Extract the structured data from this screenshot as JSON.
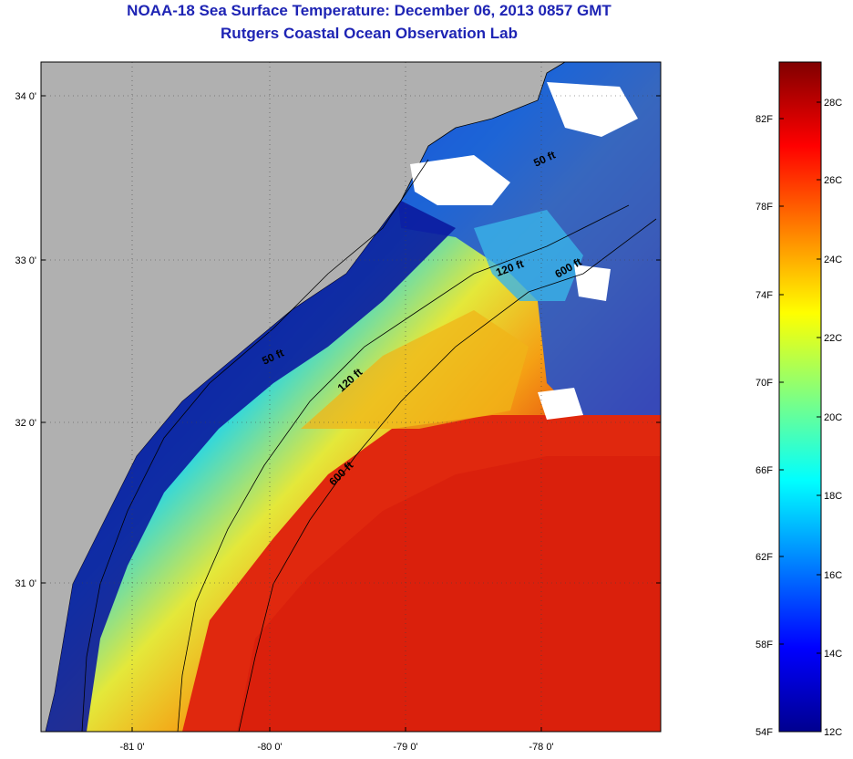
{
  "title": {
    "line1": "NOAA-18 Sea Surface Temperature:  December 06, 2013 0857 GMT",
    "line2": "Rutgers Coastal Ocean Observation Lab"
  },
  "colors": {
    "land": "#b0b0b0",
    "title": "#1e24b4",
    "cloud": "#ffffff",
    "cold": "#0b1a9e",
    "warm": "#e0220e"
  },
  "map": {
    "latitude_labels": [
      "34 0'",
      "33 0'",
      "32 0'",
      "31 0'"
    ],
    "longitude_labels": [
      "-81 0'",
      "-80 0'",
      "-79 0'",
      "-78 0'"
    ],
    "contour_labels": [
      {
        "text": "50 ft",
        "id": "contour-50-north"
      },
      {
        "text": "50 ft",
        "id": "contour-50-south"
      },
      {
        "text": "120 ft",
        "id": "contour-120-north"
      },
      {
        "text": "120 ft",
        "id": "contour-120-south"
      },
      {
        "text": "600 ft",
        "id": "contour-600-north"
      },
      {
        "text": "600 ft",
        "id": "contour-600-south"
      }
    ]
  },
  "colorbar": {
    "fahrenheit_labels": [
      "82F",
      "78F",
      "74F",
      "70F",
      "66F",
      "62F",
      "58F",
      "54F"
    ],
    "celsius_labels": [
      "28C",
      "26C",
      "24C",
      "22C",
      "20C",
      "18C",
      "16C",
      "14C",
      "12C"
    ]
  }
}
